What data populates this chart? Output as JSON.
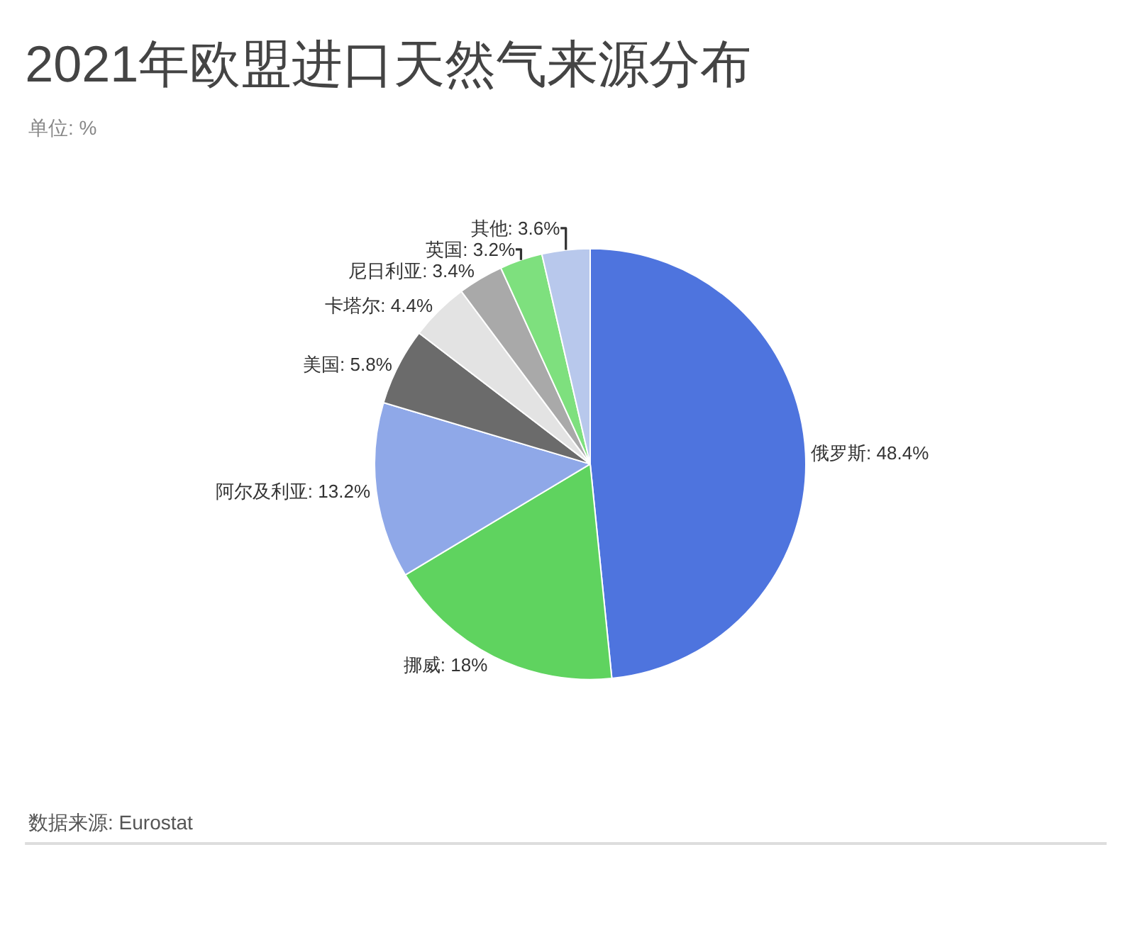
{
  "chart_data": {
    "type": "pie",
    "title": "2021年欧盟进口天然气来源分布",
    "subtitle": "单位: %",
    "categories": [
      "俄罗斯",
      "挪威",
      "阿尔及利亚",
      "美国",
      "卡塔尔",
      "尼日利亚",
      "英国",
      "其他"
    ],
    "values": [
      48.4,
      18,
      13.2,
      5.8,
      4.4,
      3.4,
      3.2,
      3.6
    ],
    "value_labels": [
      "48.4%",
      "18%",
      "13.2%",
      "5.8%",
      "4.4%",
      "3.4%",
      "3.2%",
      "3.6%"
    ],
    "colors": [
      "#4e74de",
      "#5fd35f",
      "#8fa8e8",
      "#6b6b6b",
      "#e3e3e3",
      "#a9a9a9",
      "#7ee07e",
      "#b8c8ec"
    ],
    "legend": false,
    "annotations": [
      "数据来源: Eurostat"
    ]
  }
}
